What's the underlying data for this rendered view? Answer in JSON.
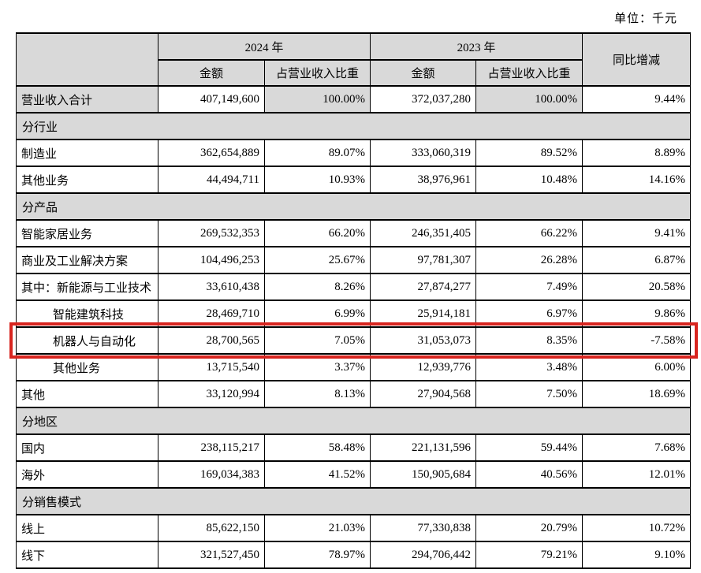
{
  "page": {
    "unit_label": "单位：千元"
  },
  "colors": {
    "header_bg": "#d9d9d9",
    "table_border": "#000000",
    "highlight_border": "#d8251f",
    "page_bg": "#ffffff"
  },
  "table": {
    "header": {
      "year_2024": "2024 年",
      "year_2023": "2023 年",
      "amount": "金额",
      "ratio": "占营业收入比重",
      "yoy": "同比增减"
    },
    "rows": [
      {
        "type": "total",
        "label": "营业收入合计",
        "cells": [
          "407,149,600",
          "100.00%",
          "372,037,280",
          "100.00%",
          "9.44%"
        ]
      },
      {
        "type": "section",
        "label": "分行业"
      },
      {
        "type": "data",
        "label": "制造业",
        "cells": [
          "362,654,889",
          "89.07%",
          "333,060,319",
          "89.52%",
          "8.89%"
        ]
      },
      {
        "type": "data",
        "label": "其他业务",
        "cells": [
          "44,494,711",
          "10.93%",
          "38,976,961",
          "10.48%",
          "14.16%"
        ]
      },
      {
        "type": "section",
        "label": "分产品"
      },
      {
        "type": "data",
        "label": "智能家居业务",
        "cells": [
          "269,532,353",
          "66.20%",
          "246,351,405",
          "66.22%",
          "9.41%"
        ]
      },
      {
        "type": "data",
        "label": "商业及工业解决方案",
        "cells": [
          "104,496,253",
          "25.67%",
          "97,781,307",
          "26.28%",
          "6.87%"
        ]
      },
      {
        "type": "data",
        "label": "其中：新能源与工业技术",
        "cells": [
          "33,610,438",
          "8.26%",
          "27,874,277",
          "7.49%",
          "20.58%"
        ]
      },
      {
        "type": "data",
        "indent": true,
        "label": "智能建筑科技",
        "cells": [
          "28,469,710",
          "6.99%",
          "25,914,181",
          "6.97%",
          "9.86%"
        ]
      },
      {
        "type": "data",
        "indent": true,
        "highlight": true,
        "label": "机器人与自动化",
        "cells": [
          "28,700,565",
          "7.05%",
          "31,053,073",
          "8.35%",
          "-7.58%"
        ]
      },
      {
        "type": "data",
        "indent": true,
        "label": "其他业务",
        "cells": [
          "13,715,540",
          "3.37%",
          "12,939,776",
          "3.48%",
          "6.00%"
        ]
      },
      {
        "type": "data",
        "label": "其他",
        "cells": [
          "33,120,994",
          "8.13%",
          "27,904,568",
          "7.50%",
          "18.69%"
        ]
      },
      {
        "type": "section",
        "label": "分地区"
      },
      {
        "type": "data",
        "label": "国内",
        "cells": [
          "238,115,217",
          "58.48%",
          "221,131,596",
          "59.44%",
          "7.68%"
        ]
      },
      {
        "type": "data",
        "label": "海外",
        "cells": [
          "169,034,383",
          "41.52%",
          "150,905,684",
          "40.56%",
          "12.01%"
        ]
      },
      {
        "type": "section",
        "label": "分销售模式"
      },
      {
        "type": "data",
        "label": "线上",
        "cells": [
          "85,622,150",
          "21.03%",
          "77,330,838",
          "20.79%",
          "10.72%"
        ]
      },
      {
        "type": "data",
        "label": "线下",
        "cells": [
          "321,527,450",
          "78.97%",
          "294,706,442",
          "79.21%",
          "9.10%"
        ]
      }
    ]
  }
}
